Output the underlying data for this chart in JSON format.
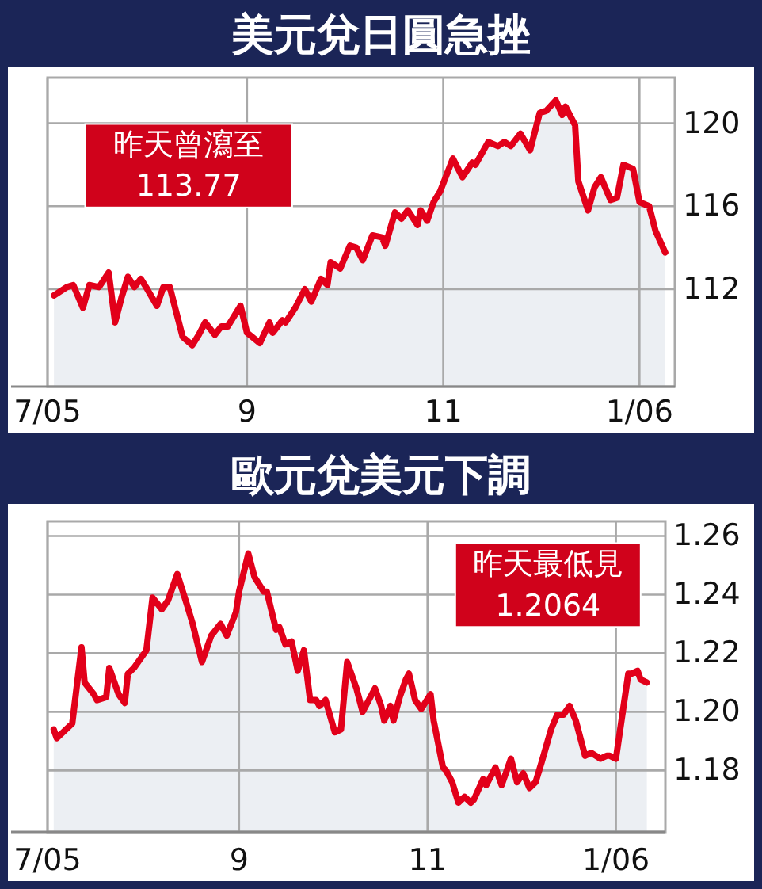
{
  "chart_data": [
    {
      "type": "area",
      "title": "美元兌日圓急挫",
      "annotations": [
        "昨天曾瀉至",
        "113.77"
      ],
      "series": [
        {
          "color": "#e2001a",
          "x": [
            "2005-07-03",
            "2005-07-07",
            "2005-07-09",
            "2005-07-12",
            "2005-07-14",
            "2005-07-17",
            "2005-07-20",
            "2005-07-22",
            "2005-07-24",
            "2005-07-26",
            "2005-07-28",
            "2005-07-30",
            "2005-08-01",
            "2005-08-04",
            "2005-08-06",
            "2005-08-08",
            "2005-08-10",
            "2005-08-12",
            "2005-08-15",
            "2005-08-17",
            "2005-08-19",
            "2005-08-22",
            "2005-08-24",
            "2005-08-26",
            "2005-08-30",
            "2005-09-01",
            "2005-09-05",
            "2005-09-08",
            "2005-09-09",
            "2005-09-12",
            "2005-09-13",
            "2005-09-16",
            "2005-09-19",
            "2005-09-21",
            "2005-09-24",
            "2005-09-26",
            "2005-09-27",
            "2005-09-30",
            "2005-10-03",
            "2005-10-05",
            "2005-10-07",
            "2005-10-10",
            "2005-10-13",
            "2005-10-14",
            "2005-10-17",
            "2005-10-19",
            "2005-10-21",
            "2005-10-24",
            "2005-10-25",
            "2005-10-27",
            "2005-10-29",
            "2005-10-31",
            "2005-11-04",
            "2005-11-07",
            "2005-11-10",
            "2005-11-11",
            "2005-11-15",
            "2005-11-18",
            "2005-11-20",
            "2005-11-22",
            "2005-11-25",
            "2005-11-28",
            "2005-12-01",
            "2005-12-03",
            "2005-12-06",
            "2005-12-08",
            "2005-12-09",
            "2005-12-12",
            "2005-12-13",
            "2005-12-16",
            "2005-12-18",
            "2005-12-20",
            "2005-12-23",
            "2005-12-25",
            "2005-12-27",
            "2005-12-30",
            "2006-01-01",
            "2006-01-04",
            "2006-01-06",
            "2006-01-09"
          ],
          "values": [
            111.7,
            112.1,
            112.2,
            111.1,
            112.2,
            112.1,
            112.8,
            110.4,
            111.6,
            112.6,
            112.1,
            112.5,
            112.0,
            111.2,
            112.1,
            112.1,
            110.9,
            109.7,
            109.3,
            109.8,
            110.4,
            109.8,
            110.2,
            110.2,
            111.2,
            109.9,
            109.4,
            110.4,
            109.9,
            110.5,
            110.4,
            111.1,
            112.0,
            111.4,
            112.5,
            112.2,
            113.3,
            113.0,
            114.1,
            114.0,
            113.4,
            114.6,
            114.5,
            114.1,
            115.7,
            115.4,
            115.8,
            115.1,
            115.8,
            115.3,
            116.2,
            116.7,
            118.3,
            117.4,
            118.1,
            118.0,
            119.1,
            118.9,
            119.1,
            118.9,
            119.5,
            118.7,
            120.5,
            120.6,
            121.1,
            120.4,
            120.8,
            119.9,
            117.2,
            115.8,
            116.9,
            117.4,
            116.3,
            116.4,
            118.0,
            117.8,
            116.2,
            116.0,
            114.8,
            113.77
          ]
        }
      ],
      "xlim": [
        "2005-07-01",
        "2006-01-12"
      ],
      "xticks": [
        {
          "value": "2005-07-01",
          "label": "7/05"
        },
        {
          "value": "2005-09-01",
          "label": "9"
        },
        {
          "value": "2005-11-01",
          "label": "11"
        },
        {
          "value": "2006-01-01",
          "label": "1/06"
        }
      ],
      "ylim": [
        107.3,
        122.2
      ],
      "yticks": [
        112,
        116,
        120
      ],
      "grid": true
    },
    {
      "type": "area",
      "title": "歐元兌美元下調",
      "annotations": [
        "昨天最低見",
        "1.2064"
      ],
      "series": [
        {
          "color": "#e2001a",
          "x": [
            "2005-07-03",
            "2005-07-04",
            "2005-07-08",
            "2005-07-09",
            "2005-07-12",
            "2005-07-13",
            "2005-07-16",
            "2005-07-17",
            "2005-07-20",
            "2005-07-21",
            "2005-07-24",
            "2005-07-26",
            "2005-07-27",
            "2005-07-29",
            "2005-08-02",
            "2005-08-04",
            "2005-08-07",
            "2005-08-09",
            "2005-08-12",
            "2005-08-15",
            "2005-08-17",
            "2005-08-20",
            "2005-08-23",
            "2005-08-26",
            "2005-08-28",
            "2005-08-31",
            "2005-09-01",
            "2005-09-04",
            "2005-09-06",
            "2005-09-09",
            "2005-09-10",
            "2005-09-13",
            "2005-09-14",
            "2005-09-16",
            "2005-09-18",
            "2005-09-20",
            "2005-09-22",
            "2005-09-24",
            "2005-09-26",
            "2005-09-27",
            "2005-09-29",
            "2005-10-02",
            "2005-10-04",
            "2005-10-06",
            "2005-10-09",
            "2005-10-11",
            "2005-10-13",
            "2005-10-15",
            "2005-10-17",
            "2005-10-18",
            "2005-10-20",
            "2005-10-21",
            "2005-10-23",
            "2005-10-25",
            "2005-10-26",
            "2005-10-28",
            "2005-10-30",
            "2005-11-02",
            "2005-11-03",
            "2005-11-06",
            "2005-11-07",
            "2005-11-09",
            "2005-11-11",
            "2005-11-13",
            "2005-11-15",
            "2005-11-16",
            "2005-11-19",
            "2005-11-20",
            "2005-11-23",
            "2005-11-25",
            "2005-11-28",
            "2005-11-30",
            "2005-12-02",
            "2005-12-04",
            "2005-12-06",
            "2005-12-08",
            "2005-12-11",
            "2005-12-13",
            "2005-12-15",
            "2005-12-17",
            "2005-12-19",
            "2005-12-22",
            "2005-12-24",
            "2005-12-27",
            "2005-12-29",
            "2005-12-30",
            "2006-01-01",
            "2006-01-05",
            "2006-01-06",
            "2006-01-08",
            "2006-01-09",
            "2006-01-11"
          ],
          "values": [
            1.194,
            1.191,
            1.195,
            1.196,
            1.222,
            1.21,
            1.206,
            1.204,
            1.205,
            1.215,
            1.206,
            1.203,
            1.213,
            1.215,
            1.221,
            1.239,
            1.235,
            1.238,
            1.247,
            1.237,
            1.23,
            1.217,
            1.226,
            1.23,
            1.226,
            1.234,
            1.241,
            1.254,
            1.246,
            1.241,
            1.241,
            1.228,
            1.229,
            1.223,
            1.224,
            1.214,
            1.221,
            1.204,
            1.204,
            1.202,
            1.204,
            1.193,
            1.194,
            1.217,
            1.208,
            1.2,
            1.204,
            1.208,
            1.202,
            1.197,
            1.202,
            1.197,
            1.205,
            1.211,
            1.213,
            1.204,
            1.201,
            1.206,
            1.197,
            1.181,
            1.18,
            1.176,
            1.169,
            1.171,
            1.169,
            1.17,
            1.177,
            1.175,
            1.181,
            1.175,
            1.184,
            1.176,
            1.179,
            1.174,
            1.176,
            1.183,
            1.194,
            1.199,
            1.199,
            1.202,
            1.197,
            1.185,
            1.186,
            1.184,
            1.185,
            1.185,
            1.184,
            1.213,
            1.213,
            1.214,
            1.211,
            1.21
          ]
        }
      ],
      "xlim": [
        "2005-07-01",
        "2006-01-17"
      ],
      "xticks": [
        {
          "value": "2005-07-01",
          "label": "7/05"
        },
        {
          "value": "2005-09-01",
          "label": "9"
        },
        {
          "value": "2005-11-01",
          "label": "11"
        },
        {
          "value": "2006-01-01",
          "label": "1/06"
        }
      ],
      "ylim": [
        1.159,
        1.265
      ],
      "yticks": [
        1.18,
        {
          "value": 1.2,
          "label": "1.20"
        },
        1.22,
        1.24,
        1.26
      ],
      "grid": true
    }
  ]
}
